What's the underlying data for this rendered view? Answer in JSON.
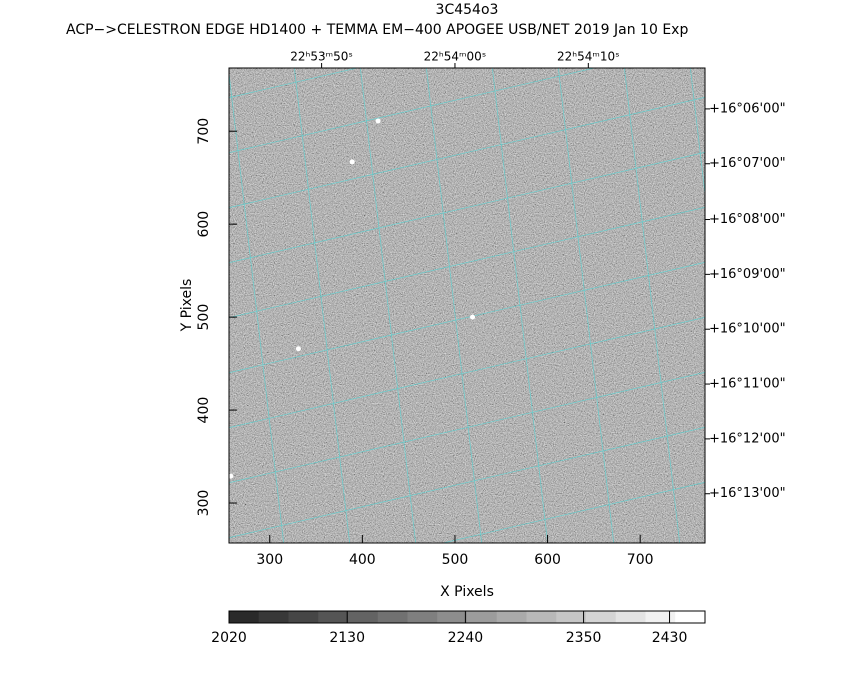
{
  "chart_data": {
    "type": "image",
    "title": "3C454o3",
    "subtitle": "ACP−>CELESTRON EDGE HD1400 + TEMMA EM−400 APOGEE USB/NET   2019 Jan 10     Exp",
    "xlabel": "X Pixels",
    "ylabel": "Y Pixels",
    "xlim": [
      256,
      770
    ],
    "xticks": [
      300,
      400,
      500,
      600,
      700
    ],
    "ylim": [
      257,
      768
    ],
    "yticks": [
      300,
      400,
      500,
      600,
      700
    ],
    "ra_ticks": [
      {
        "value": 356,
        "label": "22ʰ53ᵐ50ˢ"
      },
      {
        "value": 500,
        "label": "22ʰ54ᵐ00ˢ"
      },
      {
        "value": 644,
        "label": "22ʰ54ᵐ10ˢ"
      }
    ],
    "dec_ticks": [
      {
        "value": 724,
        "label": "+16°06'00\""
      },
      {
        "value": 665,
        "label": "+16°07'00\""
      },
      {
        "value": 605,
        "label": "+16°08'00\""
      },
      {
        "value": 546,
        "label": "+16°09'00\""
      },
      {
        "value": 487,
        "label": "+16°10'00\""
      },
      {
        "value": 428,
        "label": "+16°11'00\""
      },
      {
        "value": 369,
        "label": "+16°12'00\""
      },
      {
        "value": 310,
        "label": "+16°13'00\""
      }
    ],
    "sources": {
      "x": [
        417,
        389,
        519,
        331,
        258
      ],
      "y": [
        711,
        667,
        500,
        466,
        329
      ],
      "color": "#ffffff"
    },
    "grid_color": "#5fd0d0",
    "clim": [
      2020,
      2463
    ],
    "cticks": [
      2020,
      2130,
      2240,
      2350,
      2430
    ]
  }
}
